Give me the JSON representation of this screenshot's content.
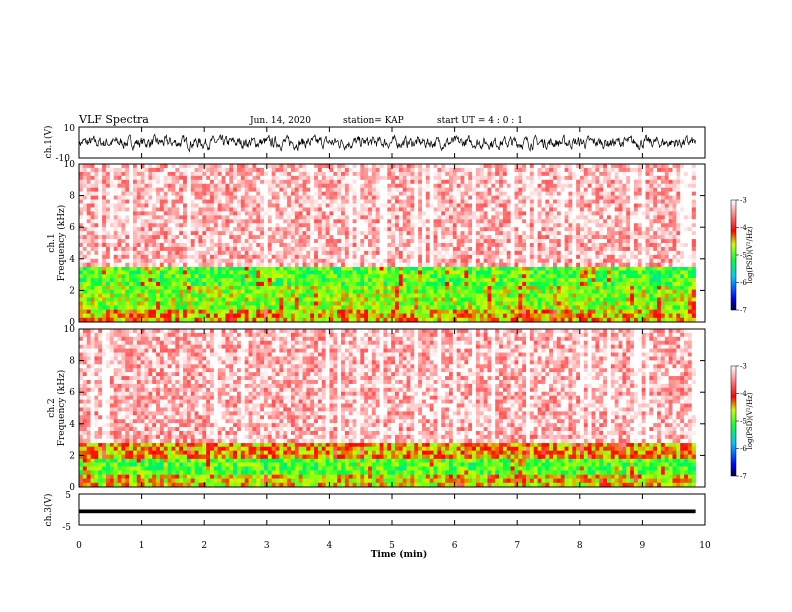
{
  "header": {
    "title": "VLF Spectra",
    "date": "Jun. 14, 2020",
    "station": "station= KAP",
    "start": "start  UT =  4 : 0  : 1"
  },
  "chart_data": [
    {
      "type": "line",
      "panel": "ch1-waveform",
      "ylabel": "ch.1(V)",
      "ylim": [
        -10,
        10
      ],
      "yticks": [
        "10",
        "-10"
      ],
      "xlim": [
        0,
        10
      ],
      "description_values": {
        "mean": 0,
        "amplitude": 5
      },
      "color": "#000000"
    },
    {
      "type": "heatmap",
      "panel": "ch1-spectrogram",
      "ylabel": "ch.1\nFrequency (kHz)",
      "ylim": [
        0,
        10
      ],
      "yticks": [
        "0",
        "2",
        "4",
        "6",
        "8",
        "10"
      ],
      "xlim": [
        0,
        9.85
      ],
      "bands": [
        {
          "from": 0,
          "to": 0.8,
          "level": -4.5
        },
        {
          "from": 0.8,
          "to": 2.3,
          "level": -4.8
        },
        {
          "from": 2.3,
          "to": 3.5,
          "level": -5.0
        },
        {
          "from": 3.5,
          "to": 10,
          "level": -3.3
        }
      ],
      "colorbar": {
        "label": "log(PSD)(V²/Hz)",
        "range": [
          -7,
          -3
        ],
        "ticks": [
          "-3",
          "-4",
          "-5",
          "-6",
          "-7"
        ]
      }
    },
    {
      "type": "heatmap",
      "panel": "ch2-spectrogram",
      "ylabel": "ch.2\nFrequency (kHz)",
      "ylim": [
        0,
        10
      ],
      "yticks": [
        "0",
        "2",
        "4",
        "6",
        "8",
        "10"
      ],
      "xlim": [
        0,
        9.85
      ],
      "bands": [
        {
          "from": 0,
          "to": 0.8,
          "level": -4.6
        },
        {
          "from": 0.8,
          "to": 1.8,
          "level": -5.0
        },
        {
          "from": 1.8,
          "to": 2.8,
          "level": -4.4
        },
        {
          "from": 2.8,
          "to": 10,
          "level": -3.3
        }
      ],
      "colorbar": {
        "label": "log(PSD)(V²/Hz)",
        "range": [
          -7,
          -3
        ],
        "ticks": [
          "-3",
          "-4",
          "-5",
          "-6",
          "-7"
        ]
      }
    },
    {
      "type": "line",
      "panel": "ch3-waveform",
      "ylabel": "ch.3(V)",
      "ylim": [
        -5,
        5
      ],
      "yticks": [
        "5",
        "0",
        "-5"
      ],
      "xlim": [
        0,
        10
      ],
      "description_values": {
        "mean": -0.6,
        "amplitude": 0.6
      },
      "color": "#000000"
    }
  ],
  "xaxis": {
    "label": "Time (min)",
    "range": [
      0,
      10
    ],
    "ticks": [
      "0",
      "1",
      "2",
      "3",
      "4",
      "5",
      "6",
      "7",
      "8",
      "9",
      "10"
    ]
  }
}
